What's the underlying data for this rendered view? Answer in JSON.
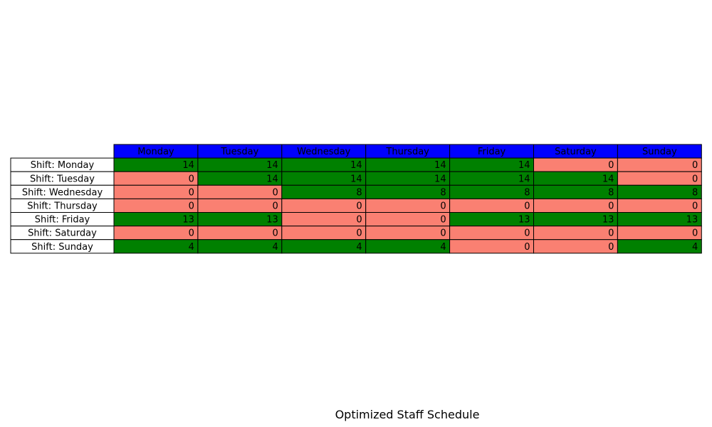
{
  "chart_data": {
    "type": "table",
    "title": "Optimized Staff Schedule",
    "columns": [
      "Monday",
      "Tuesday",
      "Wednesday",
      "Thursday",
      "Friday",
      "Saturday",
      "Sunday"
    ],
    "rows": [
      {
        "label": "Shift: Monday",
        "values": [
          14,
          14,
          14,
          14,
          14,
          0,
          0
        ]
      },
      {
        "label": "Shift: Tuesday",
        "values": [
          0,
          14,
          14,
          14,
          14,
          14,
          0
        ]
      },
      {
        "label": "Shift: Wednesday",
        "values": [
          0,
          0,
          8,
          8,
          8,
          8,
          8
        ]
      },
      {
        "label": "Shift: Thursday",
        "values": [
          0,
          0,
          0,
          0,
          0,
          0,
          0
        ]
      },
      {
        "label": "Shift: Friday",
        "values": [
          13,
          13,
          0,
          0,
          13,
          13,
          13
        ]
      },
      {
        "label": "Shift: Saturday",
        "values": [
          0,
          0,
          0,
          0,
          0,
          0,
          0
        ]
      },
      {
        "label": "Shift: Sunday",
        "values": [
          4,
          4,
          4,
          4,
          0,
          0,
          4
        ]
      }
    ],
    "colors": {
      "header": "#0000ff",
      "positive": "#008000",
      "zero": "#fa8072",
      "row_label_bg": "#ffffff",
      "border": "#000000",
      "text": "#000000"
    }
  }
}
